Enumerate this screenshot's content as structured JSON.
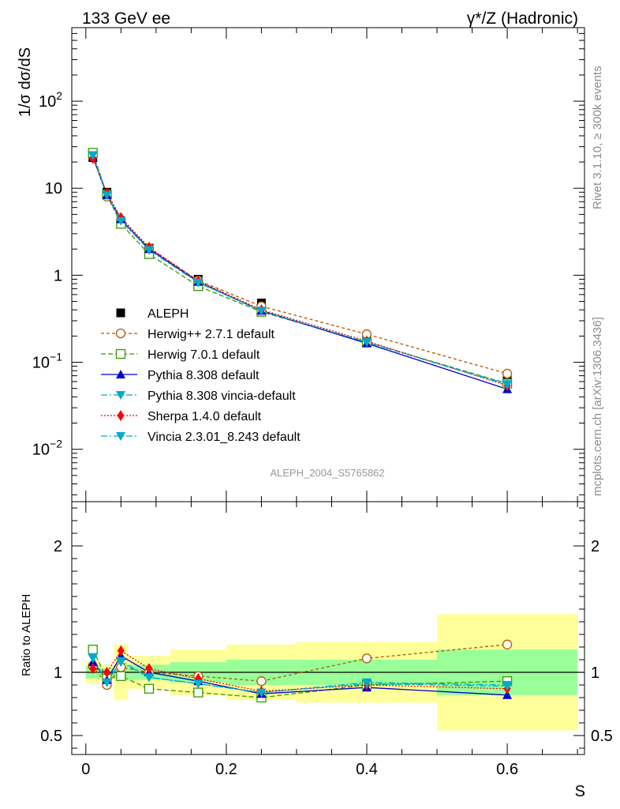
{
  "header": {
    "left_label": "133 GeV ee",
    "right_label": "γ*/Z (Hadronic)"
  },
  "side_labels": {
    "rivet": "Rivet 3.1.10, ≥ 300k events",
    "mcplots": "mcplots.cern.ch [arXiv:1306.3436]"
  },
  "watermark": "ALEPH_2004_S5765862",
  "chart_data": {
    "type": "line",
    "title": "133 GeV ee",
    "subtitle": "γ*/Z (Hadronic)",
    "xlabel": "S",
    "ylabel": "1/σ dσ/dS",
    "ratio_ylabel": "Ratio to ALEPH",
    "xlim": [
      -0.02,
      0.71
    ],
    "ylim": [
      0.0025,
      700
    ],
    "yscale": "log",
    "ratio_ylim": [
      0.35,
      2.35
    ],
    "x_ticks": [
      {
        "value": 0,
        "label": "0"
      },
      {
        "value": 0.2,
        "label": "0.2"
      },
      {
        "value": 0.4,
        "label": "0.4"
      },
      {
        "value": 0.6,
        "label": "0.6"
      }
    ],
    "y_ticks": [
      {
        "value": 100,
        "base": "10",
        "exp": "2"
      },
      {
        "value": 10,
        "base": "10",
        "exp": ""
      },
      {
        "value": 1,
        "base": "1",
        "exp": ""
      },
      {
        "value": 0.1,
        "base": "10",
        "exp": "−1"
      },
      {
        "value": 0.01,
        "base": "10",
        "exp": "−2"
      }
    ],
    "ratio_ticks": [
      {
        "value": 2,
        "label": "2"
      },
      {
        "value": 1,
        "label": "1"
      },
      {
        "value": 0.5,
        "label": "0.5"
      }
    ],
    "bin_edges": [
      0,
      0.02,
      0.04,
      0.06,
      0.12,
      0.2,
      0.3,
      0.5,
      0.7
    ],
    "x": [
      0.01,
      0.03,
      0.05,
      0.09,
      0.16,
      0.25,
      0.4,
      0.6
    ],
    "data": {
      "name": "ALEPH",
      "values": [
        22.5,
        9.0,
        4.1,
        2.05,
        0.9,
        0.48,
        0.195,
        0.062
      ],
      "band_green": [
        0.05,
        0.03,
        0.05,
        0.06,
        0.08,
        0.1,
        0.1,
        0.18
      ],
      "band_yellow": [
        0.09,
        0.06,
        0.22,
        0.13,
        0.18,
        0.22,
        0.24,
        0.46
      ]
    },
    "series": [
      {
        "name": "Herwig++ 2.7.1 default",
        "color": "#b35900",
        "marker": "circle-open",
        "dash": "4,3",
        "values": [
          23.5,
          8.0,
          4.2,
          2.05,
          0.87,
          0.44,
          0.21,
          0.074
        ],
        "ratio": [
          1.05,
          0.9,
          1.04,
          1.0,
          0.97,
          0.93,
          1.11,
          1.22
        ]
      },
      {
        "name": "Herwig 7.0.1 default",
        "color": "#339900",
        "marker": "square-open",
        "dash": "6,3",
        "values": [
          25.5,
          8.5,
          3.9,
          1.75,
          0.75,
          0.38,
          0.17,
          0.057
        ],
        "ratio": [
          1.18,
          0.95,
          0.97,
          0.87,
          0.84,
          0.8,
          0.9,
          0.93
        ]
      },
      {
        "name": "Pythia 8.308 default",
        "color": "#0000cc",
        "marker": "triangle-up",
        "dash": "",
        "values": [
          23.0,
          8.4,
          4.4,
          2.0,
          0.84,
          0.39,
          0.165,
          0.049
        ],
        "ratio": [
          1.08,
          0.94,
          1.13,
          1.0,
          0.93,
          0.83,
          0.88,
          0.82
        ]
      },
      {
        "name": "Pythia 8.308 vincia-default",
        "color": "#00aacc",
        "marker": "triangle-down",
        "dash": "8,3,2,3",
        "values": [
          24.0,
          8.5,
          4.3,
          1.95,
          0.83,
          0.39,
          0.17,
          0.056
        ],
        "ratio": [
          1.12,
          0.92,
          1.09,
          0.96,
          0.91,
          0.84,
          0.92,
          0.9
        ]
      },
      {
        "name": "Sherpa 1.4.0 default",
        "color": "#ff0000",
        "marker": "diamond",
        "dash": "2,2",
        "values": [
          22.0,
          8.8,
          4.6,
          2.1,
          0.86,
          0.4,
          0.175,
          0.054
        ],
        "ratio": [
          1.03,
          1.0,
          1.17,
          1.03,
          0.95,
          0.85,
          0.9,
          0.87
        ]
      },
      {
        "name": "Vincia 2.3.01_8.243 default",
        "color": "#00aacc",
        "marker": "triangle-down",
        "dash": "8,3,2,3",
        "values": [
          23.8,
          8.3,
          4.2,
          1.95,
          0.82,
          0.39,
          0.17,
          0.055
        ],
        "ratio": [
          1.11,
          0.92,
          1.08,
          0.96,
          0.91,
          0.84,
          0.91,
          0.89
        ]
      }
    ]
  }
}
